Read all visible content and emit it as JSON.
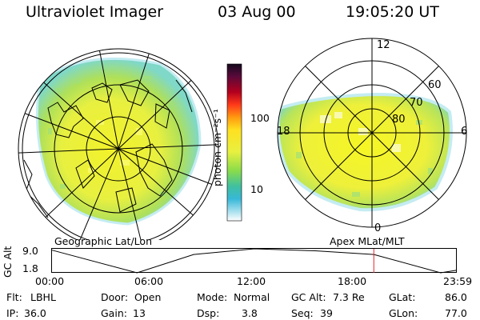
{
  "header": {
    "instrument": "Ultraviolet Imager",
    "date": "03 Aug 00",
    "time": "19:05:20 UT"
  },
  "left_panel": {
    "projection_label": "Geographic Lat/Lon"
  },
  "right_panel": {
    "projection_label": "Apex MLat/MLT",
    "mlt_labels": {
      "top": "12",
      "right": "6",
      "bottom": "0",
      "left": "18"
    },
    "lat_labels": [
      "60",
      "70",
      "80"
    ]
  },
  "colorbar": {
    "unit_label": "photon cm⁻²s⁻¹",
    "ticks": [
      "100",
      "10"
    ]
  },
  "altitude_plot": {
    "ylabel": "GC Alt",
    "ymax_label": "9.0",
    "ymin_label": "1.8",
    "x_ticks": [
      "00:00",
      "06:00",
      "12:00",
      "18:00",
      "23:59"
    ],
    "current_time_fraction": 0.795,
    "series": [
      {
        "t": 0.0,
        "alt": 8.6
      },
      {
        "t": 0.21,
        "alt": 1.8
      },
      {
        "t": 0.35,
        "alt": 7.3
      },
      {
        "t": 0.5,
        "alt": 9.0
      },
      {
        "t": 0.65,
        "alt": 8.4
      },
      {
        "t": 0.795,
        "alt": 7.3
      },
      {
        "t": 0.96,
        "alt": 1.8
      },
      {
        "t": 1.0,
        "alt": 2.6
      }
    ]
  },
  "info": {
    "flt_label": "Flt:",
    "flt_value": "LBHL",
    "ip_label": "IP:",
    "ip_value": "36.0",
    "door_label": "Door:",
    "door_value": "Open",
    "gain_label": "Gain:",
    "gain_value": "13",
    "mode_label": "Mode:",
    "mode_value": "Normal",
    "dsp_label": "Dsp:",
    "dsp_value": "3.8",
    "gcalt_label": "GC Alt:",
    "gcalt_value": "7.3 Re",
    "seq_label": "Seq:",
    "seq_value": "39",
    "glat_label": "GLat:",
    "glat_value": "86.0",
    "glon_label": "GLon:",
    "glon_value": "77.0"
  }
}
